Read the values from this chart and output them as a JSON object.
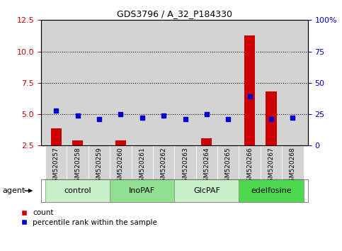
{
  "title": "GDS3796 / A_32_P184330",
  "samples": [
    "GSM520257",
    "GSM520258",
    "GSM520259",
    "GSM520260",
    "GSM520261",
    "GSM520262",
    "GSM520263",
    "GSM520264",
    "GSM520265",
    "GSM520266",
    "GSM520267",
    "GSM520268"
  ],
  "count_values": [
    3.9,
    2.9,
    2.5,
    2.9,
    2.5,
    2.5,
    2.5,
    3.1,
    2.5,
    11.3,
    6.8,
    2.5
  ],
  "percentile_values": [
    28,
    24,
    21,
    25,
    22,
    24,
    21,
    25,
    21,
    39,
    21,
    22
  ],
  "groups": [
    {
      "label": "control",
      "start": 0,
      "end": 3,
      "color": "#c8f0c8"
    },
    {
      "label": "InoPAF",
      "start": 3,
      "end": 6,
      "color": "#90e090"
    },
    {
      "label": "GlcPAF",
      "start": 6,
      "end": 9,
      "color": "#c8f0c8"
    },
    {
      "label": "edelfosine",
      "start": 9,
      "end": 12,
      "color": "#4dd94d"
    }
  ],
  "ylim_left": [
    2.5,
    12.5
  ],
  "ylim_right": [
    0,
    100
  ],
  "yticks_left": [
    2.5,
    5.0,
    7.5,
    10.0,
    12.5
  ],
  "yticks_right": [
    0,
    25,
    50,
    75,
    100
  ],
  "bar_color": "#cc0000",
  "marker_color": "#0000cc",
  "bar_width": 0.5,
  "marker_size": 5,
  "bg_color": "#d3d3d3"
}
